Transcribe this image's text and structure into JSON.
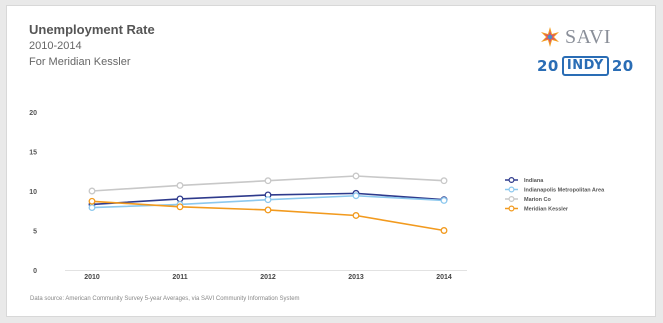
{
  "header": {
    "title": "Unemployment Rate",
    "subtitle": "2010-2014",
    "location": "For Meridian Kessler"
  },
  "logo": {
    "brand": "SAVI",
    "indy_left": "20",
    "indy_mid": "INDY",
    "indy_right": "20"
  },
  "footer": {
    "source": "Data source: American Community Survey 5-year Averages, via SAVI Community Information System"
  },
  "chart_data": {
    "type": "line",
    "x": [
      "2010",
      "2011",
      "2012",
      "2013",
      "2014"
    ],
    "ylim": [
      0,
      20
    ],
    "yticks": [
      0,
      5,
      10,
      15,
      20
    ],
    "grid": false,
    "legend_position": "right",
    "series": [
      {
        "name": "Indiana",
        "color": "#2e3a8c",
        "values": [
          8.3,
          9.0,
          9.5,
          9.7,
          8.9
        ]
      },
      {
        "name": "Indianapolis Metropolitan Area",
        "color": "#8cc8ee",
        "values": [
          7.9,
          8.3,
          8.9,
          9.4,
          8.8
        ]
      },
      {
        "name": "Marion Co",
        "color": "#c8c8c8",
        "values": [
          10.0,
          10.7,
          11.3,
          11.9,
          11.3
        ]
      },
      {
        "name": "Meridian Kessler",
        "color": "#f29a1e",
        "values": [
          8.7,
          8.0,
          7.6,
          6.9,
          5.0
        ]
      }
    ]
  }
}
